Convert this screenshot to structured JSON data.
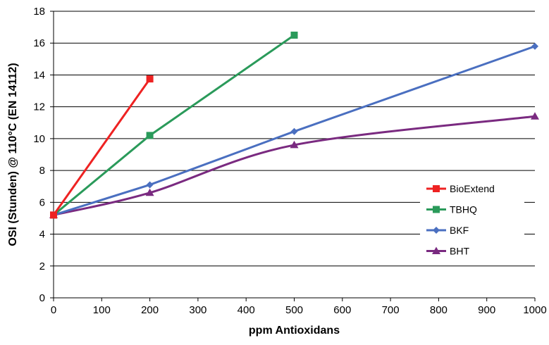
{
  "chart_data": {
    "type": "line",
    "title": "",
    "xlabel": "ppm Antioxidans",
    "ylabel": "OSI (Stunden) @ 110°C (EN 14112)",
    "xlim": [
      0,
      1000
    ],
    "ylim": [
      0,
      18
    ],
    "x_ticks": [
      0,
      100,
      200,
      300,
      400,
      500,
      600,
      700,
      800,
      900,
      1000
    ],
    "y_ticks": [
      0,
      2,
      4,
      6,
      8,
      10,
      12,
      14,
      16,
      18
    ],
    "grid": "horizontal",
    "legend_position": "right",
    "series": [
      {
        "name": "BioExtend",
        "color": "#ee2222",
        "marker": "square",
        "curve": "linear",
        "x": [
          0,
          200
        ],
        "y": [
          5.2,
          13.75
        ]
      },
      {
        "name": "TBHQ",
        "color": "#2a9a5a",
        "marker": "square",
        "curve": "linear",
        "x": [
          0,
          200,
          500
        ],
        "y": [
          5.2,
          10.2,
          16.5
        ]
      },
      {
        "name": "BKF",
        "color": "#4a6fc0",
        "marker": "diamond",
        "curve": "linear",
        "x": [
          0,
          200,
          500,
          1000
        ],
        "y": [
          5.2,
          7.1,
          10.45,
          15.8
        ]
      },
      {
        "name": "BHT",
        "color": "#7a2a80",
        "marker": "triangle",
        "curve": "smooth",
        "x": [
          0,
          200,
          500,
          1000
        ],
        "y": [
          5.2,
          6.6,
          9.6,
          11.4
        ]
      }
    ]
  }
}
